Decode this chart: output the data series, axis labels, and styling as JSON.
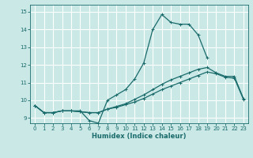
{
  "xlabel": "Humidex (Indice chaleur)",
  "xlim": [
    -0.5,
    23.5
  ],
  "ylim": [
    8.7,
    15.4
  ],
  "background_color": "#c9e8e6",
  "grid_color": "#b0d8d5",
  "line_color": "#1a6b6b",
  "xticks": [
    0,
    1,
    2,
    3,
    4,
    5,
    6,
    7,
    8,
    9,
    10,
    11,
    12,
    13,
    14,
    15,
    16,
    17,
    18,
    19,
    20,
    21,
    22,
    23
  ],
  "yticks": [
    9,
    10,
    11,
    12,
    13,
    14,
    15
  ],
  "series": [
    {
      "x": [
        0,
        1,
        2,
        3,
        4,
        5,
        6,
        7,
        8,
        9,
        10,
        11,
        12,
        13,
        14,
        15,
        16,
        17,
        18,
        19
      ],
      "y": [
        9.7,
        9.3,
        9.3,
        9.4,
        9.4,
        9.4,
        8.85,
        8.7,
        10.0,
        10.3,
        10.6,
        11.2,
        12.1,
        14.0,
        14.85,
        14.4,
        14.3,
        14.3,
        13.7,
        12.4
      ]
    },
    {
      "x": [
        0,
        1,
        2,
        3,
        4,
        5,
        6,
        7,
        8,
        9,
        10,
        11,
        12,
        13,
        14,
        15,
        16,
        17,
        18,
        19,
        20,
        21,
        22,
        23
      ],
      "y": [
        9.7,
        9.3,
        9.3,
        9.4,
        9.4,
        9.35,
        9.3,
        9.3,
        9.5,
        9.65,
        9.8,
        10.05,
        10.3,
        10.6,
        10.9,
        11.15,
        11.35,
        11.55,
        11.75,
        11.85,
        11.55,
        11.35,
        11.35,
        10.1
      ]
    },
    {
      "x": [
        0,
        1,
        2,
        3,
        4,
        5,
        6,
        7,
        8,
        9,
        10,
        11,
        12,
        13,
        14,
        15,
        16,
        17,
        18,
        19,
        20,
        21,
        22,
        23
      ],
      "y": [
        9.7,
        9.3,
        9.3,
        9.4,
        9.4,
        9.35,
        9.3,
        9.3,
        9.5,
        9.6,
        9.75,
        9.9,
        10.1,
        10.35,
        10.6,
        10.8,
        11.0,
        11.2,
        11.4,
        11.6,
        11.5,
        11.3,
        11.25,
        10.05
      ]
    }
  ]
}
